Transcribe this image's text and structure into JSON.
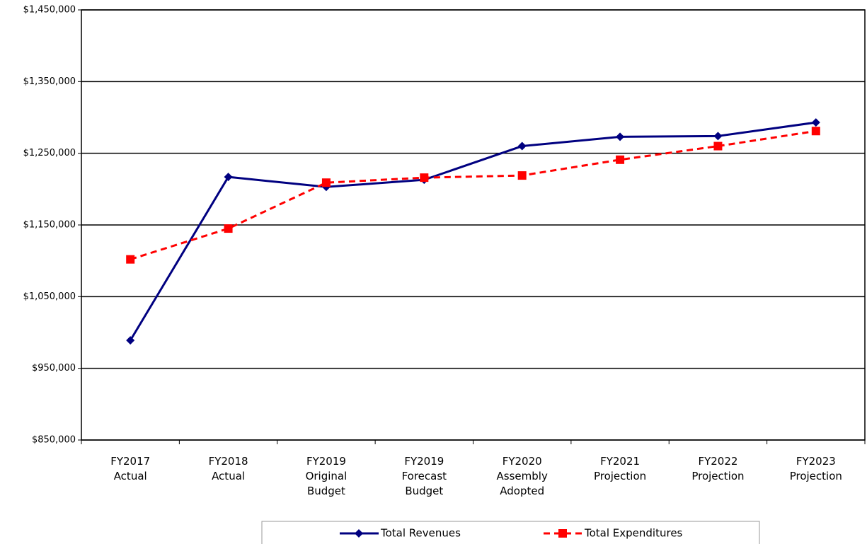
{
  "chart_data": {
    "type": "line",
    "categories": [
      "FY2017\nActual",
      "FY2018\nActual",
      "FY2019\nOriginal\nBudget",
      "FY2019\nForecast\nBudget",
      "FY2020\nAssembly\nAdopted",
      "FY2021\nProjection",
      "FY2022\nProjection",
      "FY2023\nProjection"
    ],
    "series": [
      {
        "name": "Total Revenues",
        "color": "#000080",
        "marker": "diamond",
        "dash": false,
        "values": [
          989000,
          1217000,
          1203000,
          1213000,
          1260000,
          1273000,
          1274000,
          1293000
        ]
      },
      {
        "name": "Total Expenditures",
        "color": "#ff0000",
        "marker": "square",
        "dash": true,
        "values": [
          1102000,
          1145000,
          1209000,
          1216000,
          1219000,
          1241000,
          1260000,
          1281000
        ]
      }
    ],
    "ylim": [
      850000,
      1450000
    ],
    "yticks": [
      {
        "value": 850000,
        "label": "$850,000"
      },
      {
        "value": 950000,
        "label": "$950,000"
      },
      {
        "value": 1050000,
        "label": "$1,050,000"
      },
      {
        "value": 1150000,
        "label": "$1,150,000"
      },
      {
        "value": 1250000,
        "label": "$1,250,000"
      },
      {
        "value": 1350000,
        "label": "$1,350,000"
      },
      {
        "value": 1450000,
        "label": "$1,450,000"
      }
    ],
    "grid": true,
    "legend": "bottom"
  }
}
